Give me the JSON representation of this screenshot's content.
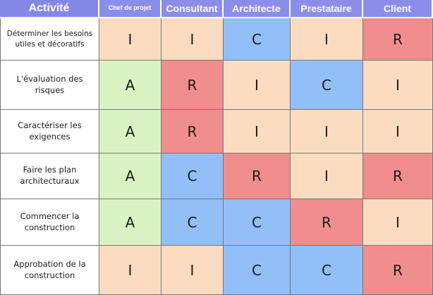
{
  "colors": {
    "header": "#8a8ee8",
    "R": "#f08d8d",
    "C": "#92bff7",
    "I": "#fbdcc1",
    "A": "#d9f4c2"
  },
  "headers": [
    "Activité",
    "Chef de projet",
    "Consultant",
    "Architecte",
    "Prestataire",
    "Client"
  ],
  "rows": [
    {
      "activity": "Déterminer les besoins utiles et décoratifs",
      "values": [
        "I",
        "I",
        "C",
        "I",
        "R"
      ]
    },
    {
      "activity": "L'évaluation des risques",
      "values": [
        "A",
        "R",
        "I",
        "C",
        "I"
      ]
    },
    {
      "activity": "Caractériser les exigences",
      "values": [
        "A",
        "R",
        "I",
        "I",
        "I"
      ]
    },
    {
      "activity": "Faire les plan architecturaux",
      "values": [
        "A",
        "C",
        "R",
        "I",
        "R"
      ]
    },
    {
      "activity": "Commencer la construction",
      "values": [
        "A",
        "C",
        "C",
        "R",
        "I"
      ]
    },
    {
      "activity": "Approbation de la construction",
      "values": [
        "I",
        "I",
        "C",
        "C",
        "R"
      ]
    }
  ]
}
